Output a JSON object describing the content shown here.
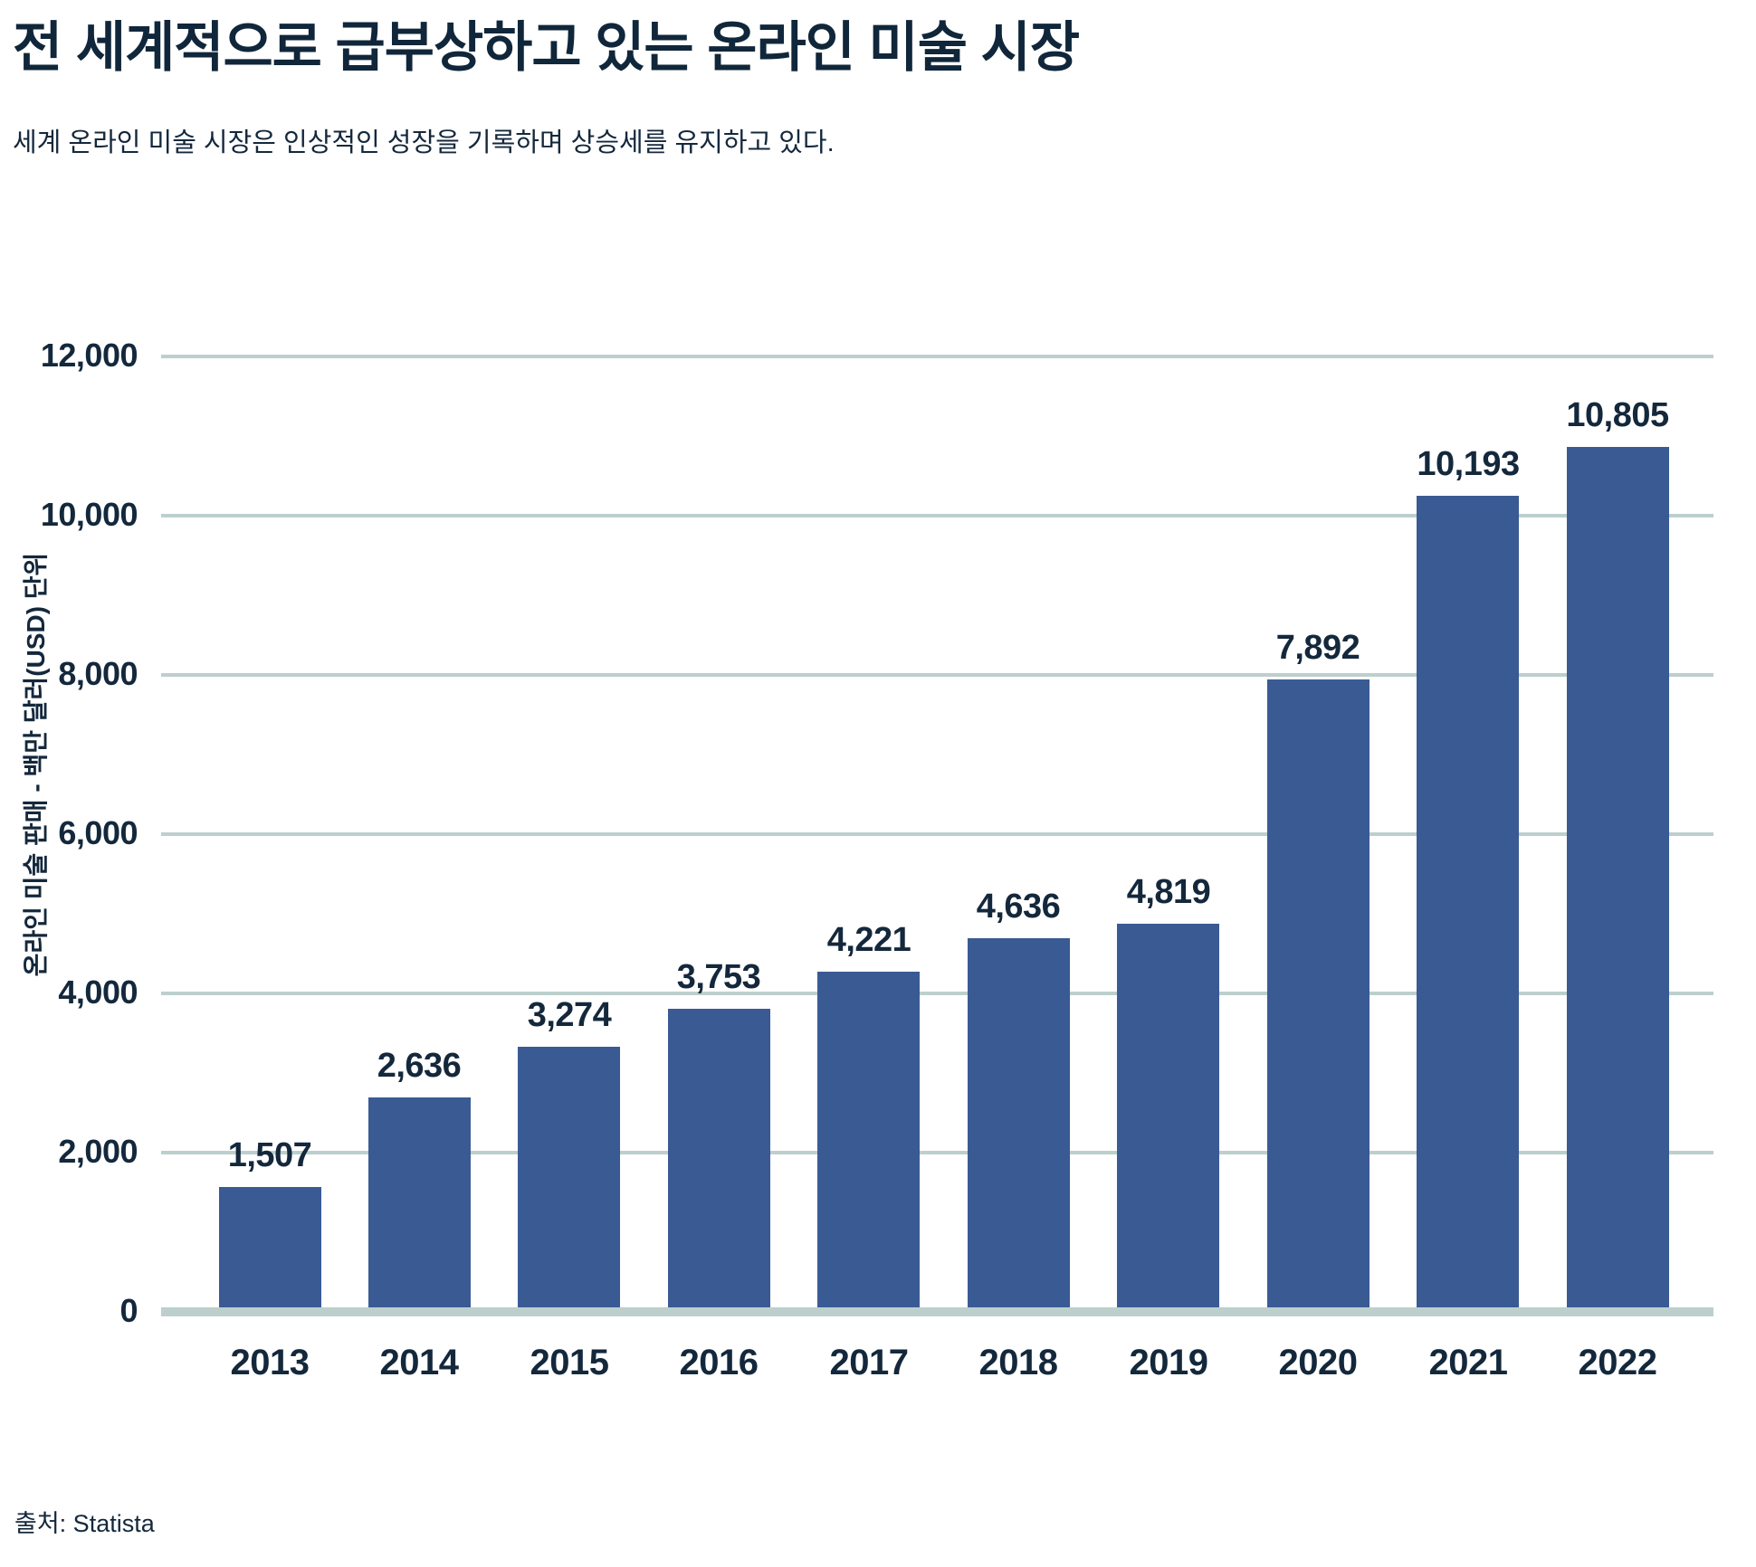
{
  "header": {
    "title": "전 세계적으로 급부상하고 있는 온라인 미술 시장",
    "subtitle": "세계 온라인 미술 시장은 인상적인 성장을 기록하며 상승세를 유지하고 있다."
  },
  "chart_data": {
    "type": "bar",
    "title": "전 세계적으로 급부상하고 있는 온라인 미술 시장",
    "subtitle": "세계 온라인 미술 시장은 인상적인 성장을 기록하며 상승세를 유지하고 있다.",
    "categories": [
      "2013",
      "2014",
      "2015",
      "2016",
      "2017",
      "2018",
      "2019",
      "2020",
      "2021",
      "2022"
    ],
    "values": [
      1507,
      2636,
      3274,
      3753,
      4221,
      4636,
      4819,
      7892,
      10193,
      10805
    ],
    "value_labels": [
      "1,507",
      "2,636",
      "3,274",
      "3,753",
      "4,221",
      "4,636",
      "4,819",
      "7,892",
      "10,193",
      "10,805"
    ],
    "xlabel": "",
    "ylabel": "온라인 미술 판매 - 백만 달러(USD) 단위",
    "ylim": [
      0,
      12000
    ],
    "yticks": [
      0,
      2000,
      4000,
      6000,
      8000,
      10000,
      12000
    ],
    "ytick_labels": [
      "0",
      "2,000",
      "4,000",
      "6,000",
      "8,000",
      "10,000",
      "12,000"
    ],
    "grid": "horizontal",
    "legend": "none",
    "colors": {
      "bar": "#3A5A94",
      "gridline": "#BCCFCD",
      "axis_baseline": "#BCCFCD",
      "text": "#14283C"
    }
  },
  "footer": {
    "source": "출처: Statista"
  }
}
